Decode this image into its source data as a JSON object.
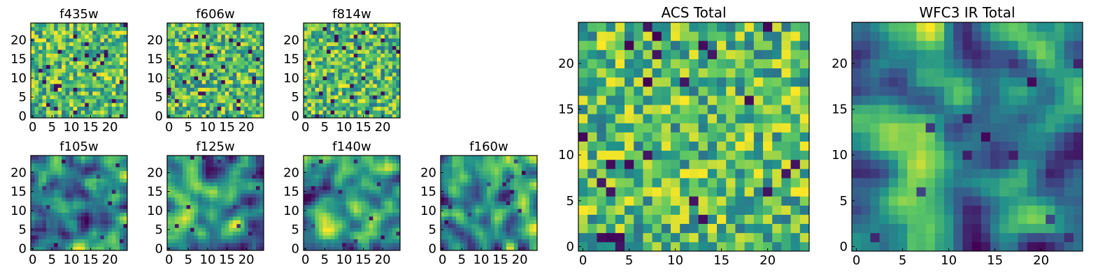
{
  "colormap": [
    "#440154",
    "#3b528b",
    "#21918c",
    "#5ec962",
    "#fde725"
  ],
  "chart_data": [
    {
      "id": "f435w",
      "type": "heatmap",
      "title": "f435w",
      "grid_size": 25,
      "xlim": [
        0,
        24
      ],
      "ylim": [
        0,
        24
      ],
      "xticks": [
        0,
        5,
        10,
        15,
        20
      ],
      "yticks": [
        0,
        5,
        10,
        15,
        20
      ],
      "texture": "noise",
      "seed": 11,
      "value_range": [
        0,
        1
      ],
      "grid": false
    },
    {
      "id": "f606w",
      "type": "heatmap",
      "title": "f606w",
      "grid_size": 25,
      "xlim": [
        0,
        24
      ],
      "ylim": [
        0,
        24
      ],
      "xticks": [
        0,
        5,
        10,
        15,
        20
      ],
      "yticks": [
        0,
        5,
        10,
        15,
        20
      ],
      "texture": "noise",
      "seed": 23,
      "value_range": [
        0,
        1
      ],
      "grid": false
    },
    {
      "id": "f814w",
      "type": "heatmap",
      "title": "f814w",
      "grid_size": 25,
      "xlim": [
        0,
        24
      ],
      "ylim": [
        0,
        24
      ],
      "xticks": [
        0,
        5,
        10,
        15,
        20
      ],
      "yticks": [
        0,
        5,
        10,
        15,
        20
      ],
      "texture": "noise",
      "seed": 37,
      "value_range": [
        0,
        1
      ],
      "grid": false
    },
    {
      "id": "f105w",
      "type": "heatmap",
      "title": "f105w",
      "grid_size": 25,
      "xlim": [
        0,
        24
      ],
      "ylim": [
        0,
        24
      ],
      "xticks": [
        0,
        5,
        10,
        15,
        20
      ],
      "yticks": [
        0,
        5,
        10,
        15,
        20
      ],
      "texture": "smooth",
      "seed": 41,
      "value_range": [
        0,
        1
      ],
      "grid": false
    },
    {
      "id": "f125w",
      "type": "heatmap",
      "title": "f125w",
      "grid_size": 25,
      "xlim": [
        0,
        24
      ],
      "ylim": [
        0,
        24
      ],
      "xticks": [
        0,
        5,
        10,
        15,
        20
      ],
      "yticks": [
        0,
        5,
        10,
        15,
        20
      ],
      "texture": "smooth",
      "seed": 53,
      "value_range": [
        0,
        1
      ],
      "grid": false
    },
    {
      "id": "f140w",
      "type": "heatmap",
      "title": "f140w",
      "grid_size": 25,
      "xlim": [
        0,
        24
      ],
      "ylim": [
        0,
        24
      ],
      "xticks": [
        0,
        5,
        10,
        15,
        20
      ],
      "yticks": [
        0,
        5,
        10,
        15,
        20
      ],
      "texture": "smooth",
      "seed": 67,
      "value_range": [
        0,
        1
      ],
      "grid": false
    },
    {
      "id": "f160w",
      "type": "heatmap",
      "title": "f160w",
      "grid_size": 25,
      "xlim": [
        0,
        24
      ],
      "ylim": [
        0,
        24
      ],
      "xticks": [
        0,
        5,
        10,
        15,
        20
      ],
      "yticks": [
        0,
        5,
        10,
        15,
        20
      ],
      "texture": "smooth",
      "seed": 79,
      "value_range": [
        0,
        1
      ],
      "grid": false
    },
    {
      "id": "acs-total",
      "type": "heatmap",
      "title": "ACS Total",
      "grid_size": 25,
      "xlim": [
        0,
        24
      ],
      "ylim": [
        0,
        24
      ],
      "xticks": [
        0,
        5,
        10,
        15,
        20
      ],
      "yticks": [
        0,
        5,
        10,
        15,
        20
      ],
      "texture": "noise",
      "seed": 97,
      "value_range": [
        0,
        1
      ],
      "grid": false
    },
    {
      "id": "wfc3-ir-total",
      "type": "heatmap",
      "title": "WFC3 IR Total",
      "grid_size": 25,
      "xlim": [
        0,
        24
      ],
      "ylim": [
        0,
        24
      ],
      "xticks": [
        0,
        5,
        10,
        15,
        20
      ],
      "yticks": [
        0,
        5,
        10,
        15,
        20
      ],
      "texture": "smooth",
      "seed": 101,
      "value_range": [
        0,
        1
      ],
      "grid": false
    }
  ]
}
